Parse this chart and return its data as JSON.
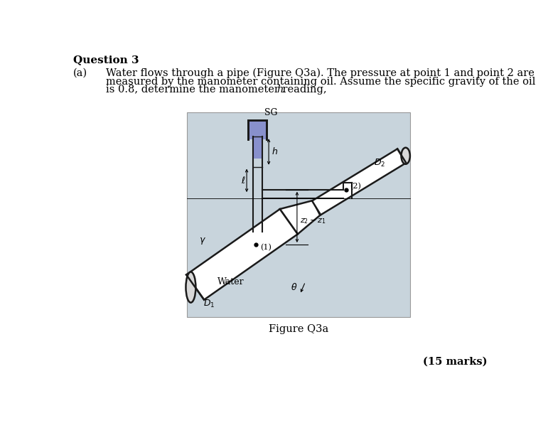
{
  "title": "Question 3",
  "q_label": "(a)",
  "q_lines": [
    "Water flows through a pipe (Figure Q3a). The pressure at point 1 and point 2 are",
    "measured by the manometer containing oil. Assume the specific gravity of the oil",
    "is 0.8, determine the manometer reading, h."
  ],
  "figure_caption": "Figure Q3a",
  "marks_text": "(15 marks)",
  "fig_bg": "#c8d4dc",
  "oil_color": "#8899cc",
  "pipe_fill": "#e8e8e8",
  "pipe_edge": "#1a1a1a",
  "tube_fill": "#d8e4ec"
}
